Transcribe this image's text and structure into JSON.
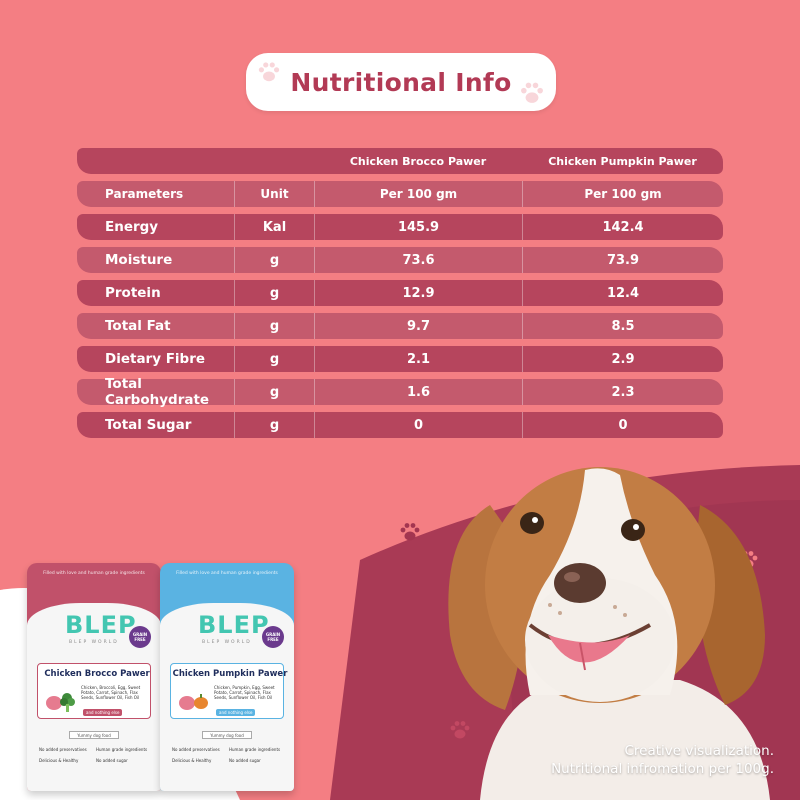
{
  "title": "Nutritional Info",
  "table": {
    "products": [
      "Chicken Brocco Pawer",
      "Chicken Pumpkin Pawer"
    ],
    "header": {
      "parameters": "Parameters",
      "unit": "Unit",
      "per1": "Per 100 gm",
      "per2": "Per 100 gm"
    },
    "rows": [
      {
        "param": "Energy",
        "unit": "Kal",
        "v1": "145.9",
        "v2": "142.4"
      },
      {
        "param": "Moisture",
        "unit": "g",
        "v1": "73.6",
        "v2": "73.9"
      },
      {
        "param": "Protein",
        "unit": "g",
        "v1": "12.9",
        "v2": "12.4"
      },
      {
        "param": "Total Fat",
        "unit": "g",
        "v1": "9.7",
        "v2": "8.5"
      },
      {
        "param": "Dietary Fibre",
        "unit": "g",
        "v1": "2.1",
        "v2": "2.9"
      },
      {
        "param": "Total Carbohydrate",
        "unit": "g",
        "v1": "1.6",
        "v2": "2.3"
      },
      {
        "param": "Total Sugar",
        "unit": "g",
        "v1": "0",
        "v2": "0"
      }
    ]
  },
  "pouches": [
    {
      "tagline": "Filled with love and human grade ingredients",
      "brand": "BLEP",
      "brand_sub": "BLEP WORLD",
      "badge": "GRAIN FREE",
      "name": "Chicken Brocco Pawer",
      "ingredients": "Chicken, Broccoli, Egg, Sweet Potato, Carrot, Spinach, Flax Seeds, Sunflower Oil, Fish Oil",
      "subtag": "and nothing else",
      "yummy": "Yummy dog food",
      "features": [
        "No added preservatives",
        "Human grade ingredients",
        "Delicious & Healthy",
        "No added sugar"
      ]
    },
    {
      "tagline": "Filled with love and human grade ingredients",
      "brand": "BLEP",
      "brand_sub": "BLEP WORLD",
      "badge": "GRAIN FREE",
      "name": "Chicken Pumpkin Pawer",
      "ingredients": "Chicken, Pumpkin, Egg, Sweet Potato, Carrot, Spinach, Flax Seeds, Sunflower Oil, Fish Oil",
      "subtag": "and nothing else",
      "yummy": "Yummy dog food",
      "features": [
        "No added preservatives",
        "Human grade ingredients",
        "Delicious & Healthy",
        "No added sugar"
      ]
    }
  ],
  "caption": {
    "line1": "Creative visualization.",
    "line2": "Nutritional infromation per 100g."
  },
  "colors": {
    "background": "#f47e83",
    "row_dark": "#b6455d",
    "row_light": "#c45a6d",
    "title_text": "#b23a55",
    "wave": "#a93a55"
  },
  "icons": [
    "paw-icon"
  ]
}
